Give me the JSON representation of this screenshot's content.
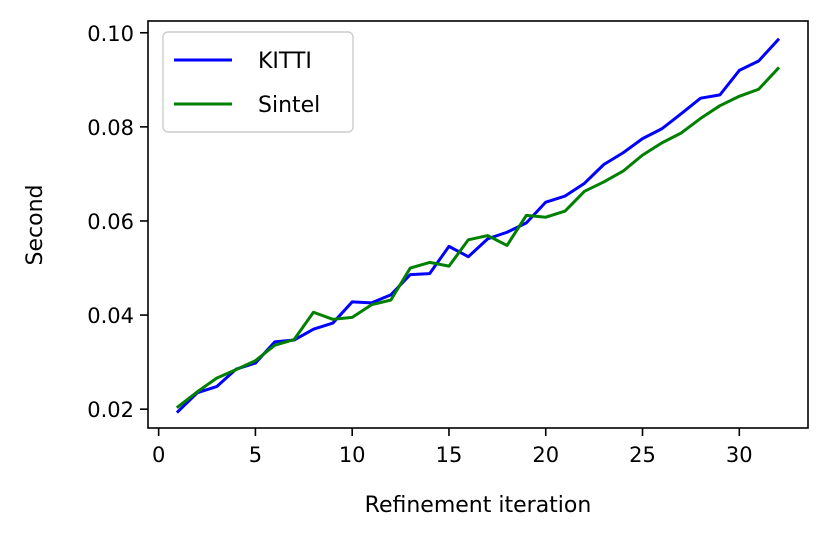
{
  "chart_data": {
    "type": "line",
    "title": "",
    "xlabel": "Refinement iteration",
    "ylabel": "Second",
    "xlim": [
      -0.55,
      33.55
    ],
    "ylim": [
      0.016,
      0.1025
    ],
    "xticks": [
      0,
      5,
      10,
      15,
      20,
      25,
      30
    ],
    "xtick_labels": [
      "0",
      "5",
      "10",
      "15",
      "20",
      "25",
      "30"
    ],
    "yticks": [
      0.02,
      0.04,
      0.06,
      0.08,
      0.1
    ],
    "ytick_labels": [
      "0.02",
      "0.04",
      "0.06",
      "0.08",
      "0.10"
    ],
    "grid": false,
    "legend_position": "top-left",
    "x": [
      1,
      2,
      3,
      4,
      5,
      6,
      7,
      8,
      9,
      10,
      11,
      12,
      13,
      14,
      15,
      16,
      17,
      18,
      19,
      20,
      21,
      22,
      23,
      24,
      25,
      26,
      27,
      28,
      29,
      30,
      31,
      32
    ],
    "series": [
      {
        "name": "KITTI",
        "color": "#0000ff",
        "values": [
          0.0195,
          0.0235,
          0.0248,
          0.0285,
          0.0298,
          0.0343,
          0.0347,
          0.037,
          0.0383,
          0.0428,
          0.0426,
          0.0443,
          0.0486,
          0.0488,
          0.0546,
          0.0524,
          0.0562,
          0.0576,
          0.0596,
          0.064,
          0.0653,
          0.068,
          0.072,
          0.0745,
          0.0775,
          0.0796,
          0.0828,
          0.0861,
          0.0868,
          0.092,
          0.094,
          0.0985
        ]
      },
      {
        "name": "Sintel",
        "color": "#008000",
        "values": [
          0.0205,
          0.0237,
          0.0266,
          0.0284,
          0.0303,
          0.0336,
          0.0348,
          0.0406,
          0.0391,
          0.0395,
          0.0422,
          0.0432,
          0.05,
          0.0512,
          0.0504,
          0.056,
          0.0569,
          0.0548,
          0.0612,
          0.0608,
          0.0621,
          0.0663,
          0.0683,
          0.0706,
          0.074,
          0.0766,
          0.0787,
          0.0818,
          0.0845,
          0.0865,
          0.088,
          0.0924
        ]
      }
    ]
  }
}
